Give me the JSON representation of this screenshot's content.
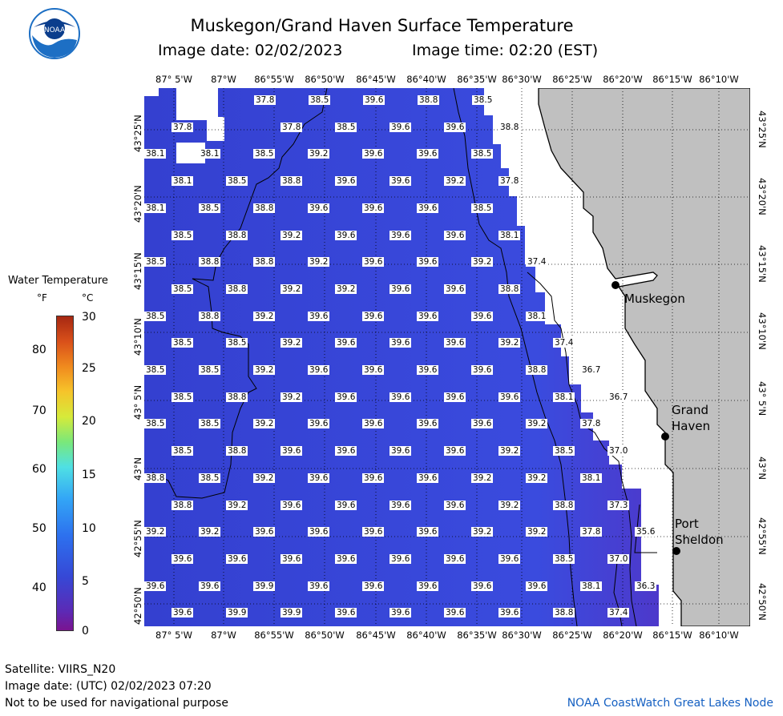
{
  "header": {
    "title": "Muskegon/Grand Haven Surface Temperature",
    "image_date_label": "Image date: 02/02/2023",
    "image_time_label": "Image time: 02:20 (EST)"
  },
  "axes": {
    "longitudes": [
      "87° 5'W",
      "87°W",
      "86°55'W",
      "86°50'W",
      "86°45'W",
      "86°40'W",
      "86°35'W",
      "86°30'W",
      "86°25'W",
      "86°20'W",
      "86°15'W",
      "86°10'W"
    ],
    "latitudes": [
      "43°25'N",
      "43°20'N",
      "43°15'N",
      "43°10'N",
      "43° 5'N",
      "43°N",
      "42°55'N",
      "42°50'N"
    ]
  },
  "legend": {
    "title": "Water Temperature",
    "unit_f": "°F",
    "unit_c": "°C",
    "f_ticks": [
      "80",
      "70",
      "60",
      "50",
      "40"
    ],
    "c_ticks": [
      "30",
      "25",
      "20",
      "15",
      "10",
      "5",
      "0"
    ]
  },
  "cities": [
    {
      "name": "Muskegon"
    },
    {
      "name": "Grand Haven"
    },
    {
      "name": "Port Sheldon"
    }
  ],
  "temperature_rows": [
    [
      "",
      "",
      "37.8",
      "",
      "38.5",
      "",
      "39.6",
      "",
      "38.8",
      "",
      "38.5"
    ],
    [
      "37.8",
      "",
      "37.8",
      "38.5",
      "39.6",
      "39.6",
      "38.8"
    ],
    [
      "38.1",
      "38.1",
      "38.5",
      "39.2",
      "39.6",
      "39.6",
      "38.5"
    ],
    [
      "38.1",
      "38.5",
      "38.8",
      "39.6",
      "39.6",
      "39.2",
      "37.8"
    ],
    [
      "38.1",
      "38.5",
      "38.8",
      "39.6",
      "39.6",
      "39.6",
      "38.5"
    ],
    [
      "38.5",
      "38.8",
      "39.2",
      "39.6",
      "39.6",
      "39.6",
      "38.1"
    ],
    [
      "38.5",
      "38.8",
      "38.8",
      "39.2",
      "39.6",
      "39.6",
      "39.2",
      "37.4"
    ],
    [
      "38.5",
      "38.8",
      "39.2",
      "39.2",
      "39.6",
      "39.6",
      "38.8"
    ],
    [
      "38.5",
      "38.8",
      "39.2",
      "39.6",
      "39.6",
      "39.6",
      "39.6",
      "38.1"
    ],
    [
      "38.5",
      "38.5",
      "39.2",
      "39.6",
      "39.6",
      "39.6",
      "39.2",
      "37.4"
    ],
    [
      "38.5",
      "38.5",
      "39.2",
      "39.6",
      "39.6",
      "39.6",
      "39.6",
      "38.8",
      "36.7"
    ],
    [
      "38.5",
      "38.8",
      "39.2",
      "39.6",
      "39.6",
      "39.6",
      "39.6",
      "38.1",
      "36.7"
    ],
    [
      "38.5",
      "38.5",
      "39.2",
      "39.6",
      "39.6",
      "39.6",
      "39.6",
      "39.2",
      "37.8"
    ],
    [
      "38.5",
      "38.8",
      "39.6",
      "39.6",
      "39.6",
      "39.6",
      "39.2",
      "38.5",
      "37.0"
    ],
    [
      "38.8",
      "38.5",
      "39.2",
      "39.6",
      "39.6",
      "39.6",
      "39.2",
      "39.2",
      "38.1"
    ],
    [
      "38.8",
      "39.2",
      "39.6",
      "39.6",
      "39.6",
      "39.6",
      "39.2",
      "38.8",
      "37.3"
    ],
    [
      "39.2",
      "39.2",
      "39.6",
      "39.6",
      "39.6",
      "39.6",
      "39.2",
      "39.2",
      "37.8",
      "35.6"
    ],
    [
      "39.6",
      "39.6",
      "39.6",
      "39.6",
      "39.6",
      "39.6",
      "39.6",
      "38.5",
      "37.0"
    ],
    [
      "39.6",
      "39.6",
      "39.9",
      "39.6",
      "39.6",
      "39.6",
      "39.6",
      "39.6",
      "38.1",
      "36.3"
    ],
    [
      "39.6",
      "39.9",
      "39.9",
      "39.6",
      "39.6",
      "39.6",
      "39.6",
      "38.8",
      "37.4"
    ]
  ],
  "footer": {
    "satellite": "Satellite: VIIRS_N20",
    "utc_date": "Image date: (UTC) 02/02/2023  07:20",
    "disclaimer": "Not to be used for navigational purpose",
    "credit": "NOAA CoastWatch Great Lakes Node"
  },
  "colors": {
    "water": "#3d44d6",
    "land": "#c0c0c0",
    "ice_nodata": "#ffffff",
    "noaa_blue": "#1d6fc4"
  }
}
